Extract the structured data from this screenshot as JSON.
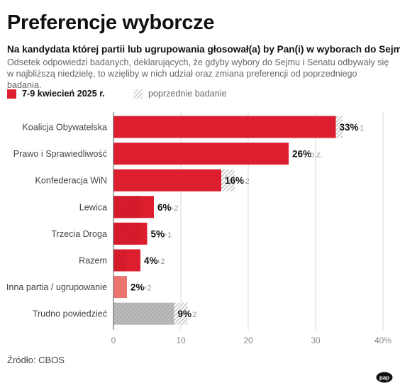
{
  "title": "Preferencje wyborcze",
  "question": "Na kandydata której partii lub ugrupowania głosował(a) by Pan(i) w wyborach do Sejmu?",
  "subtitle_line1": "Odsetek odpowiedzi badanych, deklarujących, że gdyby wybory do Sejmu i Senatu odbywały się",
  "subtitle_line2": "w najbliższą niedzielę, to wzięliby w nich udział oraz zmiana preferencji od poprzedniego badania.",
  "legend": {
    "current_label": "7-9 kwiecień 2025 r.",
    "previous_label": "poprzednie badanie"
  },
  "source": "Źródło: CBOS",
  "logo_text": "pap",
  "colors": {
    "current": "#dc1e2e",
    "current_light": "#ea7470",
    "previous": "#bdbdbd",
    "undecided": "#bcbcbc",
    "change_text": "#999999"
  },
  "chart_data": {
    "type": "bar",
    "orientation": "horizontal",
    "categories": [
      "Koalicja Obywatelska",
      "Prawo i Sprawiedliwość",
      "Konfederacja WiN",
      "Lewica",
      "Trzecia Droga",
      "Razem",
      "Inna partia / ugrupowanie",
      "Trudno powiedzieć"
    ],
    "series": [
      {
        "name": "7-9 kwiecień 2025 r.",
        "values": [
          33,
          26,
          16,
          6,
          5,
          4,
          2,
          9
        ]
      },
      {
        "name": "poprzednie badanie",
        "values": [
          34,
          26,
          18,
          4,
          4,
          2,
          0,
          11
        ]
      }
    ],
    "value_labels": [
      "33%",
      "26%",
      "16%",
      "6%",
      "5%",
      "4%",
      "2%",
      "9%"
    ],
    "change_labels": [
      "-1",
      "b.z.",
      "-2",
      "+2",
      "+1",
      "+2",
      "+2",
      "-2"
    ],
    "xlim": [
      0,
      40
    ],
    "x_ticks": [
      "0",
      "10",
      "20",
      "30",
      "40%"
    ],
    "x_tick_values": [
      0,
      10,
      20,
      30,
      40
    ],
    "grid": true
  }
}
